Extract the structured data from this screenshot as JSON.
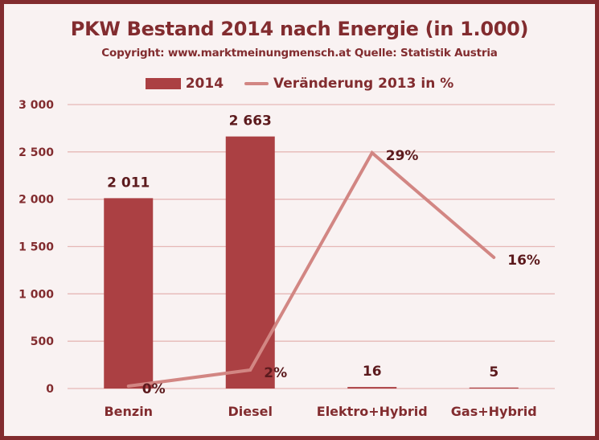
{
  "chart_data": {
    "type": "bar+line",
    "title": "PKW Bestand 2014 nach Energie (in 1.000)",
    "subtitle": "Copyright: www.marktmeinungmensch.at Quelle: Statistik Austria",
    "categories": [
      "Benzin",
      "Diesel",
      "Elektro+Hybrid",
      "Gas+Hybrid"
    ],
    "series": [
      {
        "name": "2014",
        "type": "bar",
        "axis": "primary",
        "values": [
          2011,
          2663,
          16,
          5
        ],
        "labels": [
          "2 011",
          "2 663",
          "16",
          "5"
        ],
        "color": "#ab4043"
      },
      {
        "name": "Veränderung 2013 in %",
        "type": "line",
        "axis": "secondary",
        "values": [
          0,
          2,
          29,
          16
        ],
        "labels": [
          "0%",
          "2%",
          "29%",
          "16%"
        ],
        "color": "#d28683"
      }
    ],
    "y_axis": {
      "ylim": [
        0,
        3000
      ],
      "ticks": [
        0,
        500,
        1000,
        1500,
        2000,
        2500,
        3000
      ],
      "tick_labels": [
        "0",
        "500",
        "1 000",
        "1 500",
        "2 000",
        "2 500",
        "3 000"
      ],
      "label": ""
    },
    "y2_axis": {
      "ylim": [
        -0.3,
        35
      ],
      "visible": false
    },
    "xlabel": "",
    "grid": true,
    "legend_position": "top-center",
    "colors": {
      "frame": "#822c2f",
      "background": "#f9f2f2",
      "text": "#822c2f",
      "label_text": "#5c1a1d",
      "grid": "#e6b8b7"
    }
  }
}
